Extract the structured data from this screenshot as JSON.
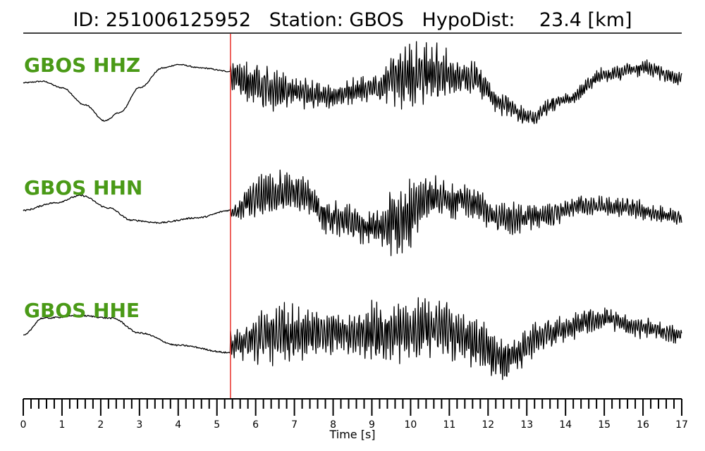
{
  "chart_data": {
    "type": "line",
    "title": "ID: 251006125952   Station: GBOS   HypoDist:    23.4 [km]",
    "xlabel": "Time [s]",
    "xlim": [
      0,
      17
    ],
    "x_ticks": [
      "0",
      "1",
      "2",
      "3",
      "4",
      "5",
      "6",
      "7",
      "8",
      "9",
      "10",
      "11",
      "12",
      "13",
      "14",
      "15",
      "16",
      "17"
    ],
    "minor_tick_step": 0.2,
    "pick_time": 5.35,
    "pick_color": "#e8322c",
    "trace_color": "#000000",
    "label_color": "#4a9a17",
    "grid": false,
    "series": [
      {
        "name": "GBOS HHZ",
        "keypoints": [
          [
            0,
            0.15
          ],
          [
            0.5,
            0.18
          ],
          [
            1,
            0.05
          ],
          [
            1.6,
            -0.3
          ],
          [
            2.1,
            -0.62
          ],
          [
            2.5,
            -0.45
          ],
          [
            3,
            0.05
          ],
          [
            3.6,
            0.45
          ],
          [
            4,
            0.52
          ],
          [
            4.6,
            0.45
          ],
          [
            5.35,
            0.38
          ]
        ],
        "noise_pre": 0.012,
        "post": [
          [
            5.35,
            0.3,
            0.7
          ],
          [
            6,
            0.1,
            0.9
          ],
          [
            7,
            -0.05,
            0.55
          ],
          [
            8,
            -0.12,
            0.45
          ],
          [
            9,
            0.05,
            0.5
          ],
          [
            9.8,
            0.3,
            1.2
          ],
          [
            10.5,
            0.35,
            1.1
          ],
          [
            11.5,
            0.25,
            0.6
          ],
          [
            12.5,
            -0.3,
            0.4
          ],
          [
            13,
            -0.55,
            0.3
          ],
          [
            14,
            -0.2,
            0.25
          ],
          [
            15,
            0.3,
            0.3
          ],
          [
            16,
            0.45,
            0.3
          ],
          [
            17,
            0.25,
            0.25
          ]
        ]
      },
      {
        "name": "GBOS HHN",
        "keypoints": [
          [
            0,
            0.05
          ],
          [
            0.8,
            0.2
          ],
          [
            1.5,
            0.35
          ],
          [
            2.2,
            0.1
          ],
          [
            2.8,
            -0.15
          ],
          [
            3.5,
            -0.2
          ],
          [
            4.5,
            -0.1
          ],
          [
            5.35,
            0.05
          ]
        ],
        "noise_pre": 0.015,
        "post": [
          [
            5.35,
            0.0,
            0.3
          ],
          [
            6.2,
            0.35,
            0.8
          ],
          [
            7,
            0.4,
            0.8
          ],
          [
            8,
            -0.1,
            0.6
          ],
          [
            9,
            -0.3,
            0.6
          ],
          [
            9.8,
            -0.15,
            1.4
          ],
          [
            10.5,
            0.3,
            0.8
          ],
          [
            11.5,
            0.25,
            0.6
          ],
          [
            12.3,
            -0.15,
            0.6
          ],
          [
            13.5,
            -0.05,
            0.4
          ],
          [
            14.5,
            0.15,
            0.35
          ],
          [
            15.5,
            0.1,
            0.35
          ],
          [
            17,
            -0.1,
            0.3
          ]
        ]
      },
      {
        "name": "GBOS HHE",
        "keypoints": [
          [
            0,
            0.0
          ],
          [
            0.5,
            0.35
          ],
          [
            1.5,
            0.4
          ],
          [
            2.3,
            0.35
          ],
          [
            3,
            0.05
          ],
          [
            4,
            -0.2
          ],
          [
            5.35,
            -0.35
          ]
        ],
        "noise_pre": 0.015,
        "post": [
          [
            5.35,
            -0.2,
            0.6
          ],
          [
            6.5,
            0.0,
            1.1
          ],
          [
            8,
            0.05,
            0.8
          ],
          [
            9.5,
            0.05,
            1.2
          ],
          [
            10.8,
            0.15,
            1.0
          ],
          [
            11.5,
            -0.1,
            0.9
          ],
          [
            12.5,
            -0.45,
            0.9
          ],
          [
            13.5,
            0.05,
            0.5
          ],
          [
            15,
            0.35,
            0.4
          ],
          [
            16,
            0.15,
            0.35
          ],
          [
            17,
            0.0,
            0.3
          ]
        ]
      }
    ]
  }
}
